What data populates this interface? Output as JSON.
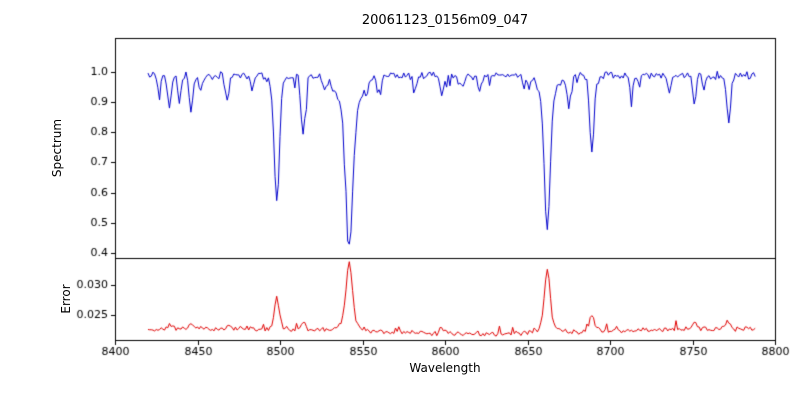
{
  "chart_data": {
    "type": "line",
    "title": "20061123_0156m09_047",
    "xlabel": "Wavelength",
    "x_range": [
      8400,
      8800
    ],
    "x_ticks": [
      8400,
      8450,
      8500,
      8550,
      8600,
      8650,
      8700,
      8750,
      8800
    ],
    "data_x_range": [
      8420,
      8788
    ],
    "background": "#ffffff",
    "axis_color": "#000000",
    "panels": [
      {
        "name": "spectrum",
        "ylabel": "Spectrum",
        "ylim": [
          0.383,
          1.112
        ],
        "yticks": [
          0.4,
          0.5,
          0.6,
          0.7,
          0.8,
          0.9,
          1.0
        ],
        "ytick_labels": [
          "0.4",
          "0.5",
          "0.6",
          "0.7",
          "0.8",
          "0.9",
          "1.0"
        ],
        "line_color": "#0000cc",
        "continuum": 0.988,
        "noise_amplitude": 0.016,
        "spike_probability": 0.1,
        "spike_max_depth": 0.045,
        "noise_seed": 20061123,
        "absorption_lines": [
          {
            "center": 8427,
            "depth": 0.05,
            "width": 1.0
          },
          {
            "center": 8433,
            "depth": 0.11,
            "width": 1.1
          },
          {
            "center": 8439,
            "depth": 0.08,
            "width": 1.0
          },
          {
            "center": 8446,
            "depth": 0.12,
            "width": 1.1
          },
          {
            "center": 8452,
            "depth": 0.05,
            "width": 1.0
          },
          {
            "center": 8468,
            "depth": 0.08,
            "width": 1.1
          },
          {
            "center": 8483,
            "depth": 0.05,
            "width": 1.0
          },
          {
            "center": 8498,
            "depth": 0.37,
            "width": 1.5
          },
          {
            "center": 8498,
            "depth": 0.04,
            "width": 4.0
          },
          {
            "center": 8514,
            "depth": 0.19,
            "width": 1.3
          },
          {
            "center": 8527,
            "depth": 0.04,
            "width": 1.0
          },
          {
            "center": 8542,
            "depth": 0.44,
            "width": 2.0
          },
          {
            "center": 8542,
            "depth": 0.13,
            "width": 6.5
          },
          {
            "center": 8560,
            "depth": 0.04,
            "width": 1.0
          },
          {
            "center": 8582,
            "depth": 0.05,
            "width": 1.0
          },
          {
            "center": 8598,
            "depth": 0.07,
            "width": 1.1
          },
          {
            "center": 8611,
            "depth": 0.04,
            "width": 1.0
          },
          {
            "center": 8621,
            "depth": 0.05,
            "width": 1.0
          },
          {
            "center": 8648,
            "depth": 0.04,
            "width": 1.0
          },
          {
            "center": 8662,
            "depth": 0.42,
            "width": 1.7
          },
          {
            "center": 8662,
            "depth": 0.08,
            "width": 5.0
          },
          {
            "center": 8675,
            "depth": 0.1,
            "width": 1.1
          },
          {
            "center": 8689,
            "depth": 0.25,
            "width": 1.4
          },
          {
            "center": 8713,
            "depth": 0.06,
            "width": 1.0
          },
          {
            "center": 8736,
            "depth": 0.06,
            "width": 1.0
          },
          {
            "center": 8751,
            "depth": 0.09,
            "width": 1.1
          },
          {
            "center": 8757,
            "depth": 0.05,
            "width": 1.0
          },
          {
            "center": 8772,
            "depth": 0.15,
            "width": 1.2
          }
        ]
      },
      {
        "name": "error",
        "ylabel": "Error",
        "ylim": [
          0.0208,
          0.0346
        ],
        "yticks": [
          0.025,
          0.03
        ],
        "ytick_labels": [
          "0.025",
          "0.030"
        ],
        "line_color": "#e00000",
        "baseline": 0.0223,
        "noise_amplitude": 0.0005,
        "spike_probability": 0.07,
        "spike_max_height": 0.0012,
        "noise_seed": 156,
        "peaks": [
          {
            "center": 8433,
            "height": 0.0008,
            "width": 1.5
          },
          {
            "center": 8446,
            "height": 0.0008,
            "width": 1.5
          },
          {
            "center": 8468,
            "height": 0.0005,
            "width": 1.4
          },
          {
            "center": 8498,
            "height": 0.005,
            "width": 1.6
          },
          {
            "center": 8514,
            "height": 0.0013,
            "width": 1.4
          },
          {
            "center": 8542,
            "height": 0.01,
            "width": 1.9
          },
          {
            "center": 8542,
            "height": 0.0015,
            "width": 5.0
          },
          {
            "center": 8598,
            "height": 0.0007,
            "width": 1.3
          },
          {
            "center": 8662,
            "height": 0.0093,
            "width": 1.7
          },
          {
            "center": 8662,
            "height": 0.0012,
            "width": 4.5
          },
          {
            "center": 8689,
            "height": 0.0028,
            "width": 1.4
          },
          {
            "center": 8751,
            "height": 0.001,
            "width": 1.3
          },
          {
            "center": 8772,
            "height": 0.0013,
            "width": 1.3
          }
        ]
      }
    ]
  }
}
